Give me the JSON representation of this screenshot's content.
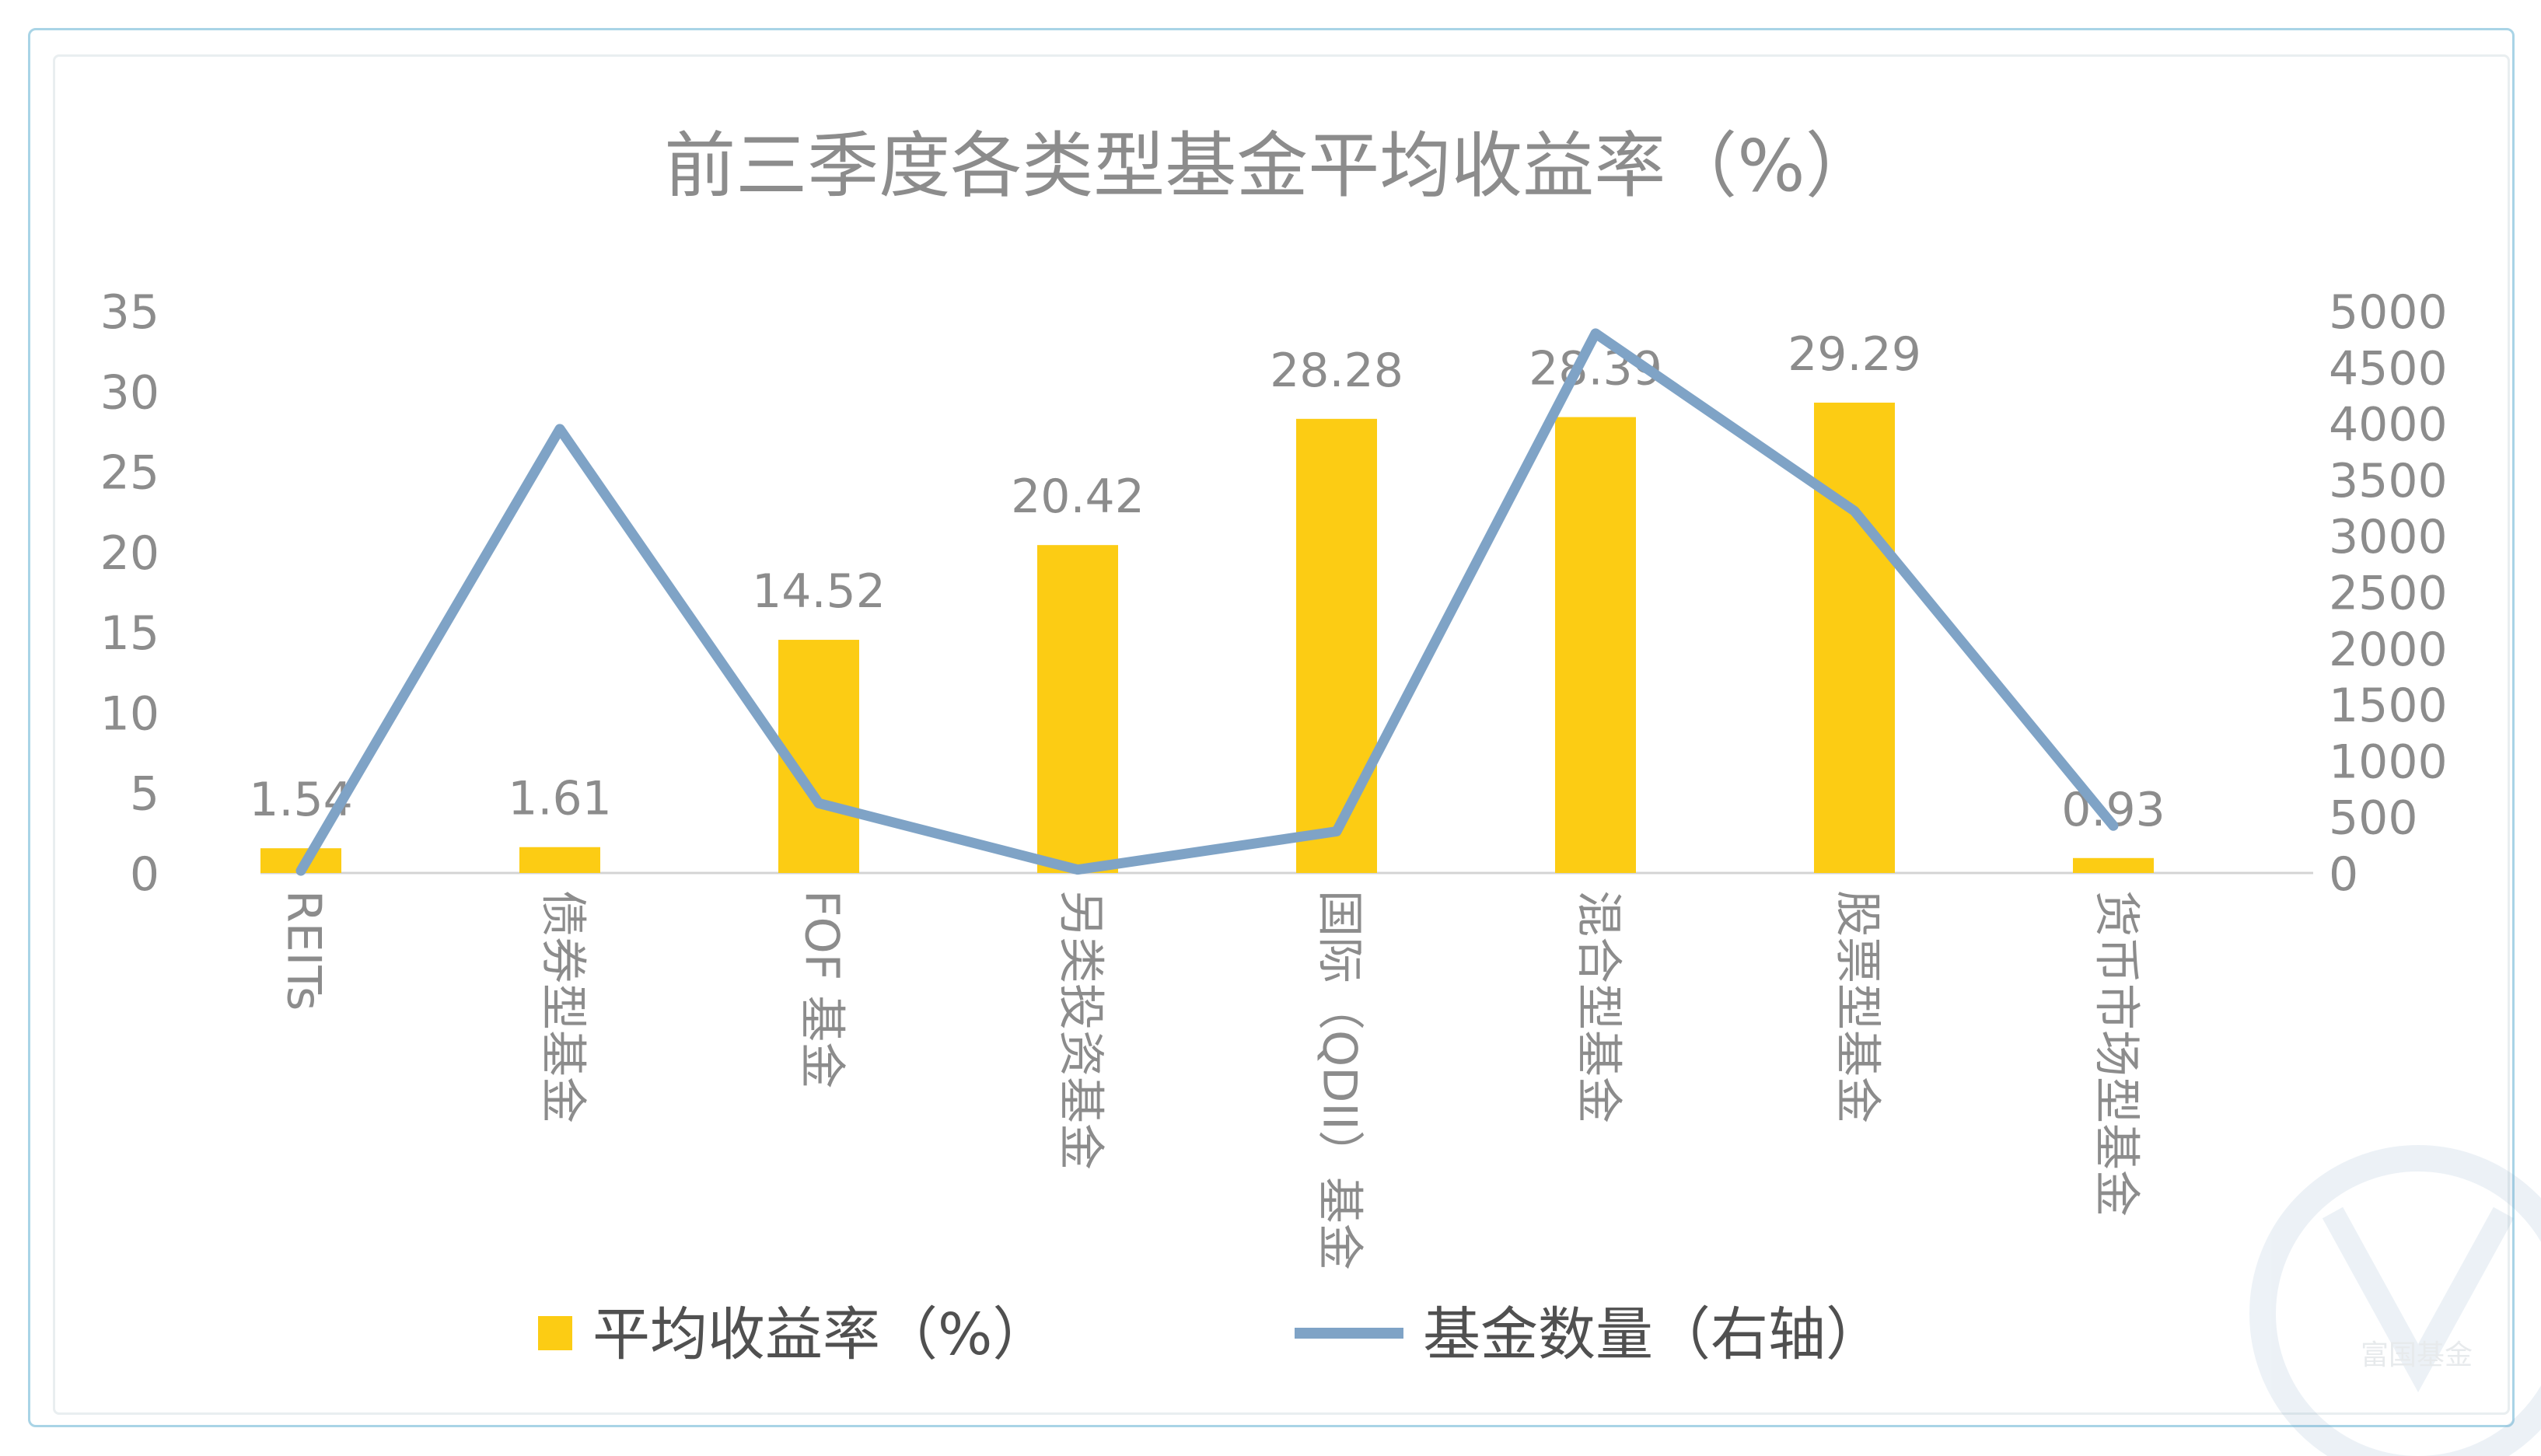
{
  "chart_data": {
    "type": "bar",
    "title": "前三季度各类型基金平均收益率（%）",
    "categories": [
      "REITs",
      "债券型基金",
      "FOF 基金",
      "另类投资基金",
      "国际（QDII）基金",
      "混合型基金",
      "股票型基金",
      "货币市场型基金"
    ],
    "series": [
      {
        "name": "平均收益率（%）",
        "type": "bar",
        "axis": "left",
        "color": "#fccc14",
        "values": [
          1.54,
          1.61,
          14.52,
          20.42,
          28.28,
          28.39,
          29.29,
          0.93
        ],
        "data_labels": [
          "1.54",
          "1.61",
          "14.52",
          "20.42",
          "28.28",
          "28.39",
          "29.29",
          "0.93"
        ]
      },
      {
        "name": "基金数量（右轴）",
        "type": "line",
        "axis": "right",
        "color": "#7fa3c6",
        "values": [
          20,
          3950,
          620,
          30,
          370,
          4800,
          3220,
          420
        ]
      }
    ],
    "y_left": {
      "min": 0,
      "max": 35,
      "ticks": [
        "0",
        "5",
        "10",
        "15",
        "20",
        "25",
        "30",
        "35"
      ]
    },
    "y_right": {
      "min": 0,
      "max": 5000,
      "ticks": [
        "0",
        "500",
        "1000",
        "1500",
        "2000",
        "2500",
        "3000",
        "3500",
        "4000",
        "4500",
        "5000"
      ]
    },
    "legend_position": "bottom",
    "grid": false
  },
  "watermark": {
    "text": "富国基金"
  }
}
